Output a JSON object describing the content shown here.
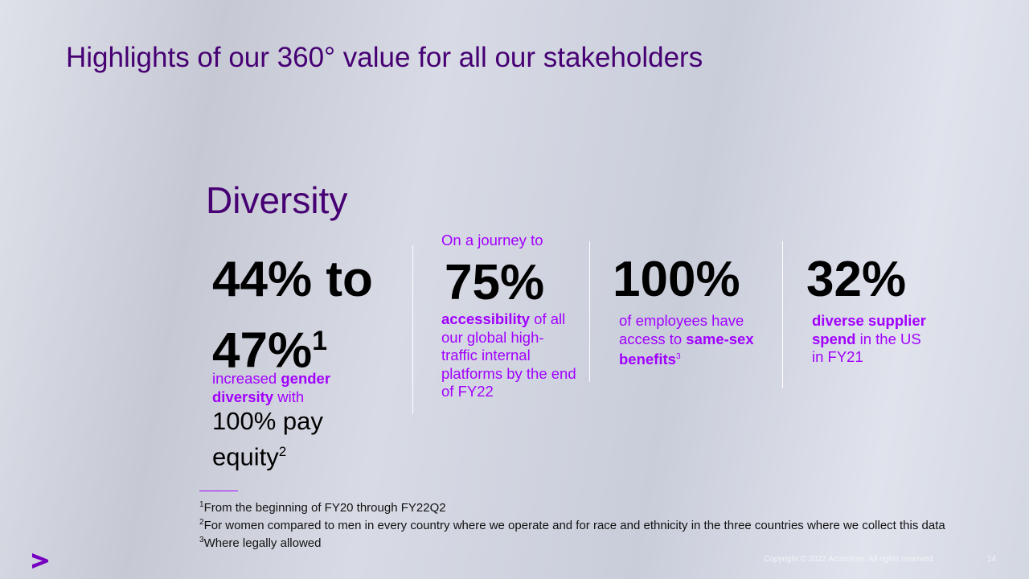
{
  "header": {
    "title": "Highlights of our 360° value for all our stakeholders"
  },
  "section": {
    "title": "Diversity"
  },
  "stats": [
    {
      "figure": "44% to 47%",
      "figure_note": "1",
      "text": [
        {
          "text": "increased "
        },
        {
          "text": "gender diversity",
          "bold": true
        },
        {
          "text": " with"
        }
      ],
      "extra": "100% pay equity",
      "extra_note": "2"
    },
    {
      "pre": "On a journey to",
      "figure": "75%",
      "text": [
        {
          "text": "accessibility",
          "bold": true
        },
        {
          "text": " of all our global high-traffic internal platforms by the end of FY22"
        }
      ]
    },
    {
      "figure": "100%",
      "text": [
        {
          "text": "of employees have access to "
        },
        {
          "text": "same-sex benefits",
          "bold": true
        }
      ],
      "text_note": "3"
    },
    {
      "figure": "32%",
      "text": [
        {
          "text": "diverse supplier spend",
          "bold": true
        },
        {
          "text": " in the US in FY21"
        }
      ]
    }
  ],
  "footnotes": [
    {
      "mark": "1",
      "text": "From the beginning of FY20 through FY22Q2"
    },
    {
      "mark": "2",
      "text": "For women compared to men in every country where we operate and for race and ethnicity in the three countries where we collect this data"
    },
    {
      "mark": "3",
      "text": "Where legally allowed"
    }
  ],
  "footer": {
    "copyright": "Copyright © 2022 Accenture. All rights reserved.",
    "page": "14"
  }
}
